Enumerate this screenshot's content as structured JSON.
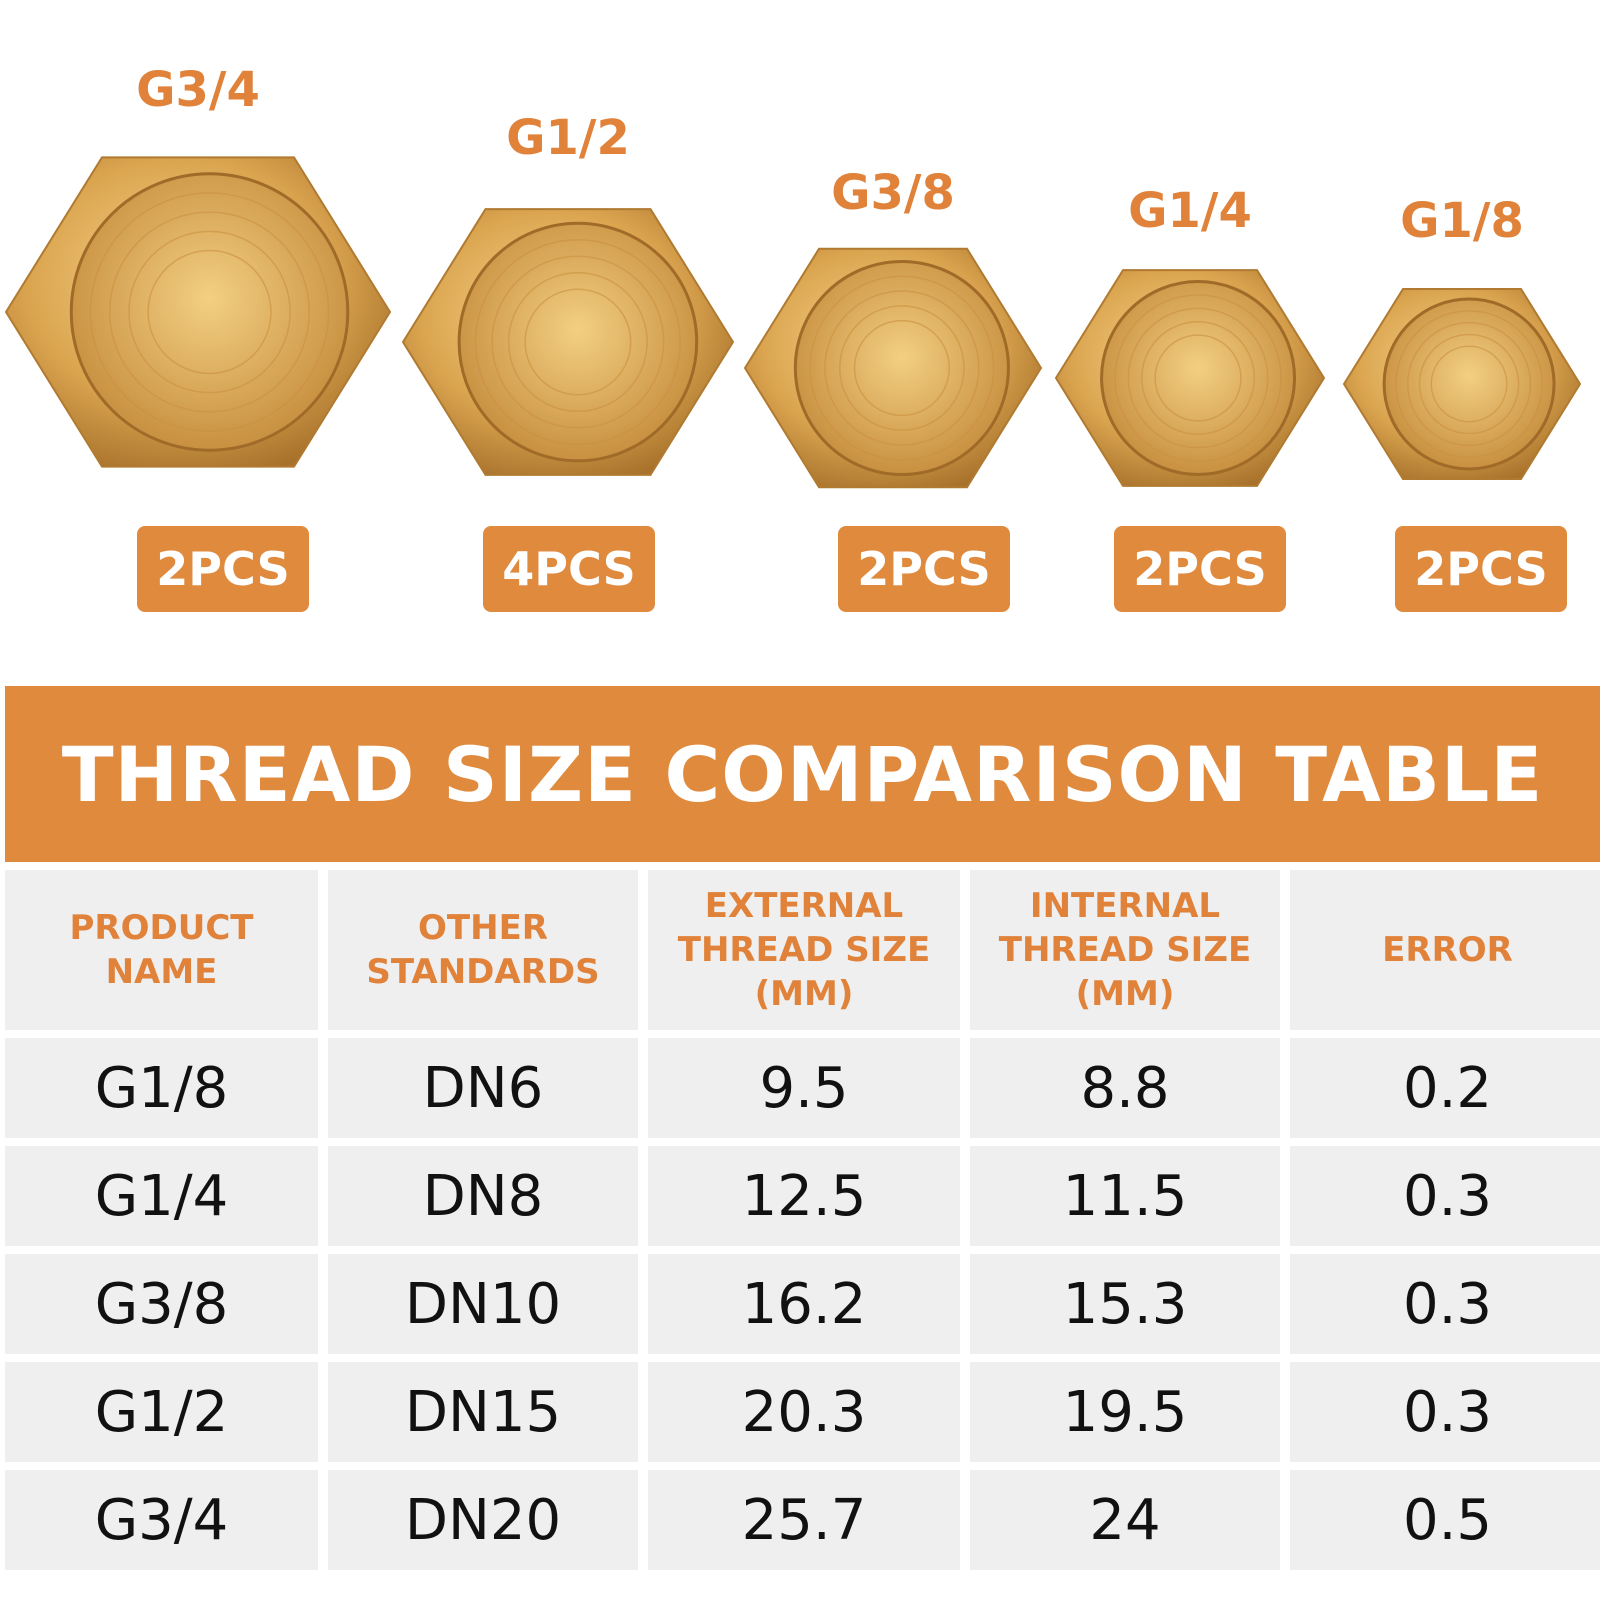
{
  "products": [
    {
      "label": "G3/4",
      "quantity": "2PCS"
    },
    {
      "label": "G1/2",
      "quantity": "4PCS"
    },
    {
      "label": "G3/8",
      "quantity": "2PCS"
    },
    {
      "label": "G1/4",
      "quantity": "2PCS"
    },
    {
      "label": "G1/8",
      "quantity": "2PCS"
    }
  ],
  "banner": {
    "title": "THREAD SIZE COMPARISON TABLE"
  },
  "table": {
    "headers": [
      "PRODUCT NAME",
      "OTHER STANDARDS",
      "EXTERNAL THREAD SIZE (MM)",
      "INTERNAL THREAD SIZE (MM)",
      "ERROR"
    ],
    "rows": [
      [
        "G1/8",
        "DN6",
        9.5,
        8.8,
        0.2
      ],
      [
        "G1/4",
        "DN8",
        12.5,
        11.5,
        0.3
      ],
      [
        "G3/8",
        "DN10",
        16.2,
        15.3,
        0.3
      ],
      [
        "G1/2",
        "DN15",
        20.3,
        19.5,
        0.3
      ],
      [
        "G3/4",
        "DN20",
        25.7,
        24,
        0.5
      ]
    ]
  }
}
